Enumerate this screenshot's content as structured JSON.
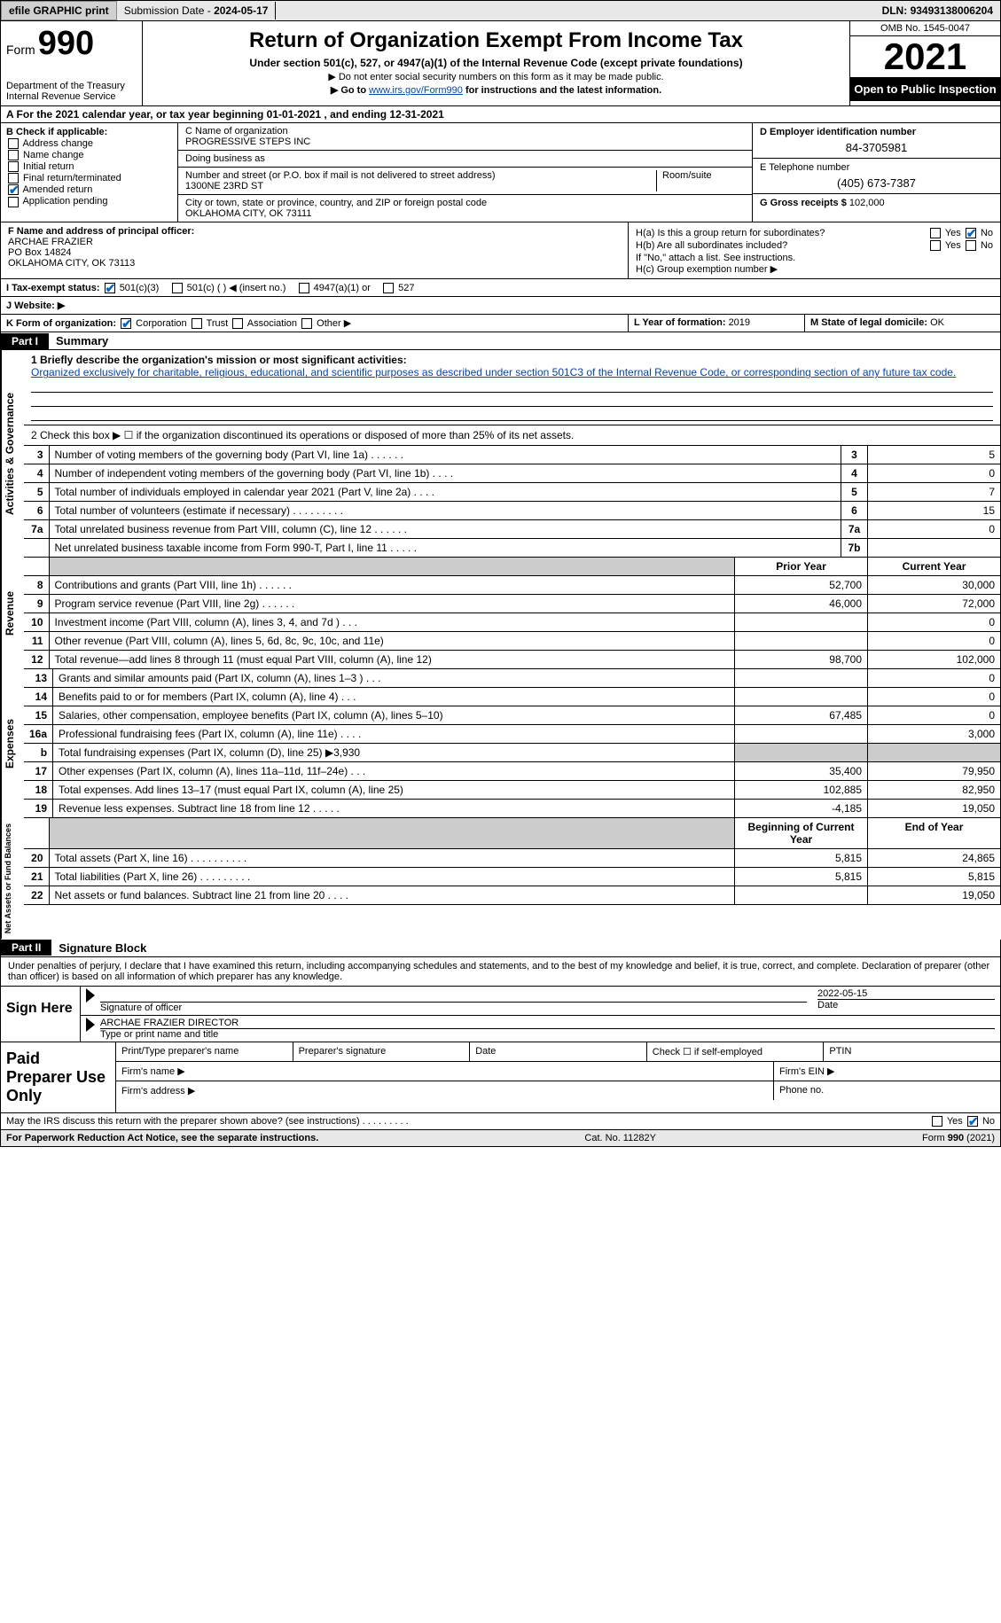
{
  "topbar": {
    "efile": "efile GRAPHIC print",
    "sub_label": "Submission Date - ",
    "sub_date": "2024-05-17",
    "dln_label": "DLN: ",
    "dln": "93493138006204"
  },
  "header": {
    "form_word": "Form",
    "form_num": "990",
    "dept": "Department of the Treasury\nInternal Revenue Service",
    "title": "Return of Organization Exempt From Income Tax",
    "sub": "Under section 501(c), 527, or 4947(a)(1) of the Internal Revenue Code (except private foundations)",
    "note1": "▶ Do not enter social security numbers on this form as it may be made public.",
    "note2_pre": "▶ Go to ",
    "note2_link": "www.irs.gov/Form990",
    "note2_post": " for instructions and the latest information.",
    "omb": "OMB No. 1545-0047",
    "year": "2021",
    "inspect": "Open to Public Inspection"
  },
  "rowA": {
    "text_pre": "A For the 2021 calendar year, or tax year beginning ",
    "begin": "01-01-2021",
    "mid": " , and ending ",
    "end": "12-31-2021"
  },
  "boxB": {
    "label": "B Check if applicable:",
    "opts": [
      "Address change",
      "Name change",
      "Initial return",
      "Final return/terminated",
      "Amended return",
      "Application pending"
    ],
    "checked_idx": 4
  },
  "boxC": {
    "name_label": "C Name of organization",
    "name": "PROGRESSIVE STEPS INC",
    "dba_label": "Doing business as",
    "dba": "",
    "addr_label": "Number and street (or P.O. box if mail is not delivered to street address)",
    "room_label": "Room/suite",
    "addr": "1300NE 23RD ST",
    "city_label": "City or town, state or province, country, and ZIP or foreign postal code",
    "city": "OKLAHOMA CITY, OK  73111"
  },
  "boxD": {
    "label": "D Employer identification number",
    "val": "84-3705981"
  },
  "boxE": {
    "label": "E Telephone number",
    "val": "(405) 673-7387"
  },
  "boxG": {
    "label": "G Gross receipts $ ",
    "val": "102,000"
  },
  "boxF": {
    "label": "F Name and address of principal officer:",
    "name": "ARCHAE FRAZIER",
    "addr1": "PO Box 14824",
    "addr2": "OKLAHOMA CITY, OK  73113"
  },
  "boxH": {
    "a_label": "H(a) Is this a group return for subordinates?",
    "a_yes": "Yes",
    "a_no": "No",
    "b_label": "H(b) Are all subordinates included?",
    "b_note": "If \"No,\" attach a list. See instructions.",
    "c_label": "H(c) Group exemption number ▶"
  },
  "taxstatus": {
    "label": "I Tax-exempt status:",
    "opts": [
      "501(c)(3)",
      "501(c) (  ) ◀ (insert no.)",
      "4947(a)(1) or",
      "527"
    ]
  },
  "website": {
    "label": "J Website: ▶",
    "val": ""
  },
  "rowK": {
    "label": "K Form of organization:",
    "opts": [
      "Corporation",
      "Trust",
      "Association",
      "Other ▶"
    ],
    "L_label": "L Year of formation: ",
    "L_val": "2019",
    "M_label": "M State of legal domicile: ",
    "M_val": "OK"
  },
  "part1": {
    "num": "Part I",
    "title": "Summary"
  },
  "mission": {
    "q": "1  Briefly describe the organization's mission or most significant activities:",
    "text": "Organized exclusively for charitable, religious, educational, and scientific purposes as described under section 501C3 of the Internal Revenue Code, or corresponding section of any future tax code."
  },
  "line2": "2  Check this box ▶ ☐ if the organization discontinued its operations or disposed of more than 25% of its net assets.",
  "gov_rows": [
    {
      "n": "3",
      "d": "Number of voting members of the governing body (Part VI, line 1a)   .    .    .    .    .    .",
      "b": "3",
      "v": "5"
    },
    {
      "n": "4",
      "d": "Number of independent voting members of the governing body (Part VI, line 1b)   .    .    .    .",
      "b": "4",
      "v": "0"
    },
    {
      "n": "5",
      "d": "Total number of individuals employed in calendar year 2021 (Part V, line 2a)   .    .    .    .",
      "b": "5",
      "v": "7"
    },
    {
      "n": "6",
      "d": "Total number of volunteers (estimate if necessary)   .    .    .    .    .    .    .    .    .",
      "b": "6",
      "v": "15"
    },
    {
      "n": "7a",
      "d": "Total unrelated business revenue from Part VIII, column (C), line 12   .    .    .    .    .    .",
      "b": "7a",
      "v": "0"
    },
    {
      "n": "",
      "d": "Net unrelated business taxable income from Form 990-T, Part I, line 11   .    .    .    .    .",
      "b": "7b",
      "v": ""
    }
  ],
  "rev_hdr": {
    "prior": "Prior Year",
    "curr": "Current Year"
  },
  "rev_rows": [
    {
      "n": "8",
      "d": "Contributions and grants (Part VIII, line 1h)   .    .    .    .    .    .",
      "p": "52,700",
      "c": "30,000"
    },
    {
      "n": "9",
      "d": "Program service revenue (Part VIII, line 2g)   .    .    .    .    .    .",
      "p": "46,000",
      "c": "72,000"
    },
    {
      "n": "10",
      "d": "Investment income (Part VIII, column (A), lines 3, 4, and 7d )   .    .    .",
      "p": "",
      "c": "0"
    },
    {
      "n": "11",
      "d": "Other revenue (Part VIII, column (A), lines 5, 6d, 8c, 9c, 10c, and 11e)",
      "p": "",
      "c": "0"
    },
    {
      "n": "12",
      "d": "Total revenue—add lines 8 through 11 (must equal Part VIII, column (A), line 12)",
      "p": "98,700",
      "c": "102,000"
    }
  ],
  "exp_rows": [
    {
      "n": "13",
      "d": "Grants and similar amounts paid (Part IX, column (A), lines 1–3 )   .    .    .",
      "p": "",
      "c": "0"
    },
    {
      "n": "14",
      "d": "Benefits paid to or for members (Part IX, column (A), line 4)   .    .    .",
      "p": "",
      "c": "0"
    },
    {
      "n": "15",
      "d": "Salaries, other compensation, employee benefits (Part IX, column (A), lines 5–10)",
      "p": "67,485",
      "c": "0"
    },
    {
      "n": "16a",
      "d": "Professional fundraising fees (Part IX, column (A), line 11e)   .    .    .    .",
      "p": "",
      "c": "3,000"
    },
    {
      "n": "b",
      "d": "Total fundraising expenses (Part IX, column (D), line 25) ▶3,930",
      "p": "shade",
      "c": "shade"
    },
    {
      "n": "17",
      "d": "Other expenses (Part IX, column (A), lines 11a–11d, 11f–24e)   .    .    .",
      "p": "35,400",
      "c": "79,950"
    },
    {
      "n": "18",
      "d": "Total expenses. Add lines 13–17 (must equal Part IX, column (A), line 25)",
      "p": "102,885",
      "c": "82,950"
    },
    {
      "n": "19",
      "d": "Revenue less expenses. Subtract line 18 from line 12   .    .    .    .    .",
      "p": "-4,185",
      "c": "19,050"
    }
  ],
  "na_hdr": {
    "beg": "Beginning of Current Year",
    "end": "End of Year"
  },
  "na_rows": [
    {
      "n": "20",
      "d": "Total assets (Part X, line 16)   .    .    .    .    .    .    .    .    .    .",
      "p": "5,815",
      "c": "24,865"
    },
    {
      "n": "21",
      "d": "Total liabilities (Part X, line 26)   .    .    .    .    .    .    .    .    .",
      "p": "5,815",
      "c": "5,815"
    },
    {
      "n": "22",
      "d": "Net assets or fund balances. Subtract line 21 from line 20   .    .    .    .",
      "p": "",
      "c": "19,050"
    }
  ],
  "vlabels": {
    "gov": "Activities & Governance",
    "rev": "Revenue",
    "exp": "Expenses",
    "na": "Net Assets or Fund Balances"
  },
  "part2": {
    "num": "Part II",
    "title": "Signature Block"
  },
  "sig_decl": "Under penalties of perjury, I declare that I have examined this return, including accompanying schedules and statements, and to the best of my knowledge and belief, it is true, correct, and complete. Declaration of preparer (other than officer) is based on all information of which preparer has any knowledge.",
  "sig": {
    "here": "Sign Here",
    "sig_of": "Signature of officer",
    "date_label": "Date",
    "date": "2022-05-15",
    "name": "ARCHAE FRAZIER  DIRECTOR",
    "name_label": "Type or print name and title"
  },
  "prep": {
    "label": "Paid Preparer Use Only",
    "r1": [
      "Print/Type preparer's name",
      "Preparer's signature",
      "Date",
      "Check ☐ if self-employed",
      "PTIN"
    ],
    "r2_l": "Firm's name  ▶",
    "r2_r": "Firm's EIN ▶",
    "r3_l": "Firm's address ▶",
    "r3_r": "Phone no."
  },
  "footer": {
    "q": "May the IRS discuss this return with the preparer shown above? (see instructions)   .    .    .    .    .    .    .    .    .",
    "yes": "Yes",
    "no": "No",
    "pra": "For Paperwork Reduction Act Notice, see the separate instructions.",
    "cat": "Cat. No. 11282Y",
    "form": "Form 990 (2021)"
  }
}
